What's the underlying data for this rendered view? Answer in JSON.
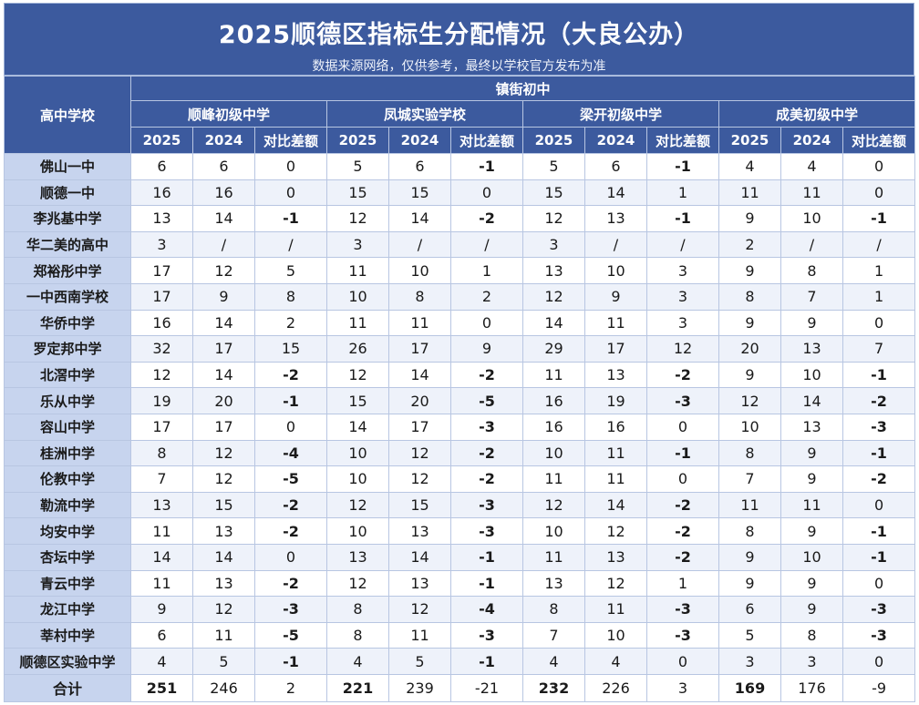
{
  "title": "2025顺德区指标生分配情况（大良公办）",
  "subtitle": "数据来源网络，仅供参考，最终以学校官方发布为准",
  "header": {
    "school_col": "高中学校",
    "group_label": "镇街初中",
    "middle_schools": [
      "顺峰初级中学",
      "凤城实验学校",
      "梁开初级中学",
      "成美初级中学"
    ],
    "sub_cols": [
      "2025",
      "2024",
      "对比差额"
    ]
  },
  "rows": [
    {
      "school": "佛山一中",
      "values": [
        "6",
        "6",
        "0",
        "5",
        "6",
        "-1",
        "5",
        "6",
        "-1",
        "4",
        "4",
        "0"
      ]
    },
    {
      "school": "顺德一中",
      "values": [
        "16",
        "16",
        "0",
        "15",
        "15",
        "0",
        "15",
        "14",
        "1",
        "11",
        "11",
        "0"
      ]
    },
    {
      "school": "李兆基中学",
      "values": [
        "13",
        "14",
        "-1",
        "12",
        "14",
        "-2",
        "12",
        "13",
        "-1",
        "9",
        "10",
        "-1"
      ]
    },
    {
      "school": "华二美的高中",
      "values": [
        "3",
        "/",
        "/",
        "3",
        "/",
        "/",
        "3",
        "/",
        "/",
        "2",
        "/",
        "/"
      ]
    },
    {
      "school": "郑裕彤中学",
      "values": [
        "17",
        "12",
        "5",
        "11",
        "10",
        "1",
        "13",
        "10",
        "3",
        "9",
        "8",
        "1"
      ]
    },
    {
      "school": "一中西南学校",
      "values": [
        "17",
        "9",
        "8",
        "10",
        "8",
        "2",
        "12",
        "9",
        "3",
        "8",
        "7",
        "1"
      ]
    },
    {
      "school": "华侨中学",
      "values": [
        "16",
        "14",
        "2",
        "11",
        "11",
        "0",
        "14",
        "11",
        "3",
        "9",
        "9",
        "0"
      ]
    },
    {
      "school": "罗定邦中学",
      "values": [
        "32",
        "17",
        "15",
        "26",
        "17",
        "9",
        "29",
        "17",
        "12",
        "20",
        "13",
        "7"
      ]
    },
    {
      "school": "北滘中学",
      "values": [
        "12",
        "14",
        "-2",
        "12",
        "14",
        "-2",
        "11",
        "13",
        "-2",
        "9",
        "10",
        "-1"
      ]
    },
    {
      "school": "乐从中学",
      "values": [
        "19",
        "20",
        "-1",
        "15",
        "20",
        "-5",
        "16",
        "19",
        "-3",
        "12",
        "14",
        "-2"
      ]
    },
    {
      "school": "容山中学",
      "values": [
        "17",
        "17",
        "0",
        "14",
        "17",
        "-3",
        "16",
        "16",
        "0",
        "10",
        "13",
        "-3"
      ]
    },
    {
      "school": "桂洲中学",
      "values": [
        "8",
        "12",
        "-4",
        "10",
        "12",
        "-2",
        "10",
        "11",
        "-1",
        "8",
        "9",
        "-1"
      ]
    },
    {
      "school": "伦教中学",
      "values": [
        "7",
        "12",
        "-5",
        "10",
        "12",
        "-2",
        "11",
        "11",
        "0",
        "7",
        "9",
        "-2"
      ]
    },
    {
      "school": "勒流中学",
      "values": [
        "13",
        "15",
        "-2",
        "12",
        "15",
        "-3",
        "12",
        "14",
        "-2",
        "11",
        "11",
        "0"
      ]
    },
    {
      "school": "均安中学",
      "values": [
        "11",
        "13",
        "-2",
        "10",
        "13",
        "-3",
        "10",
        "12",
        "-2",
        "8",
        "9",
        "-1"
      ]
    },
    {
      "school": "杏坛中学",
      "values": [
        "14",
        "14",
        "0",
        "13",
        "14",
        "-1",
        "11",
        "13",
        "-2",
        "9",
        "10",
        "-1"
      ]
    },
    {
      "school": "青云中学",
      "values": [
        "11",
        "13",
        "-2",
        "12",
        "13",
        "-1",
        "13",
        "12",
        "1",
        "9",
        "9",
        "0"
      ]
    },
    {
      "school": "龙江中学",
      "values": [
        "9",
        "12",
        "-3",
        "8",
        "12",
        "-4",
        "8",
        "11",
        "-3",
        "6",
        "9",
        "-3"
      ]
    },
    {
      "school": "莘村中学",
      "values": [
        "6",
        "11",
        "-5",
        "8",
        "11",
        "-3",
        "7",
        "10",
        "-3",
        "5",
        "8",
        "-3"
      ]
    },
    {
      "school": "顺德区实验中学",
      "values": [
        "4",
        "5",
        "-1",
        "4",
        "5",
        "-1",
        "4",
        "4",
        "0",
        "3",
        "3",
        "0"
      ]
    }
  ],
  "total": {
    "school": "合计",
    "values": [
      "251",
      "246",
      "2",
      "221",
      "239",
      "-21",
      "232",
      "226",
      "3",
      "169",
      "176",
      "-9"
    ]
  },
  "colors": {
    "header_bg": "#3c5a9e",
    "school_col_bg": "#c7d4ee",
    "stripe_bg": "#eef2fa"
  }
}
